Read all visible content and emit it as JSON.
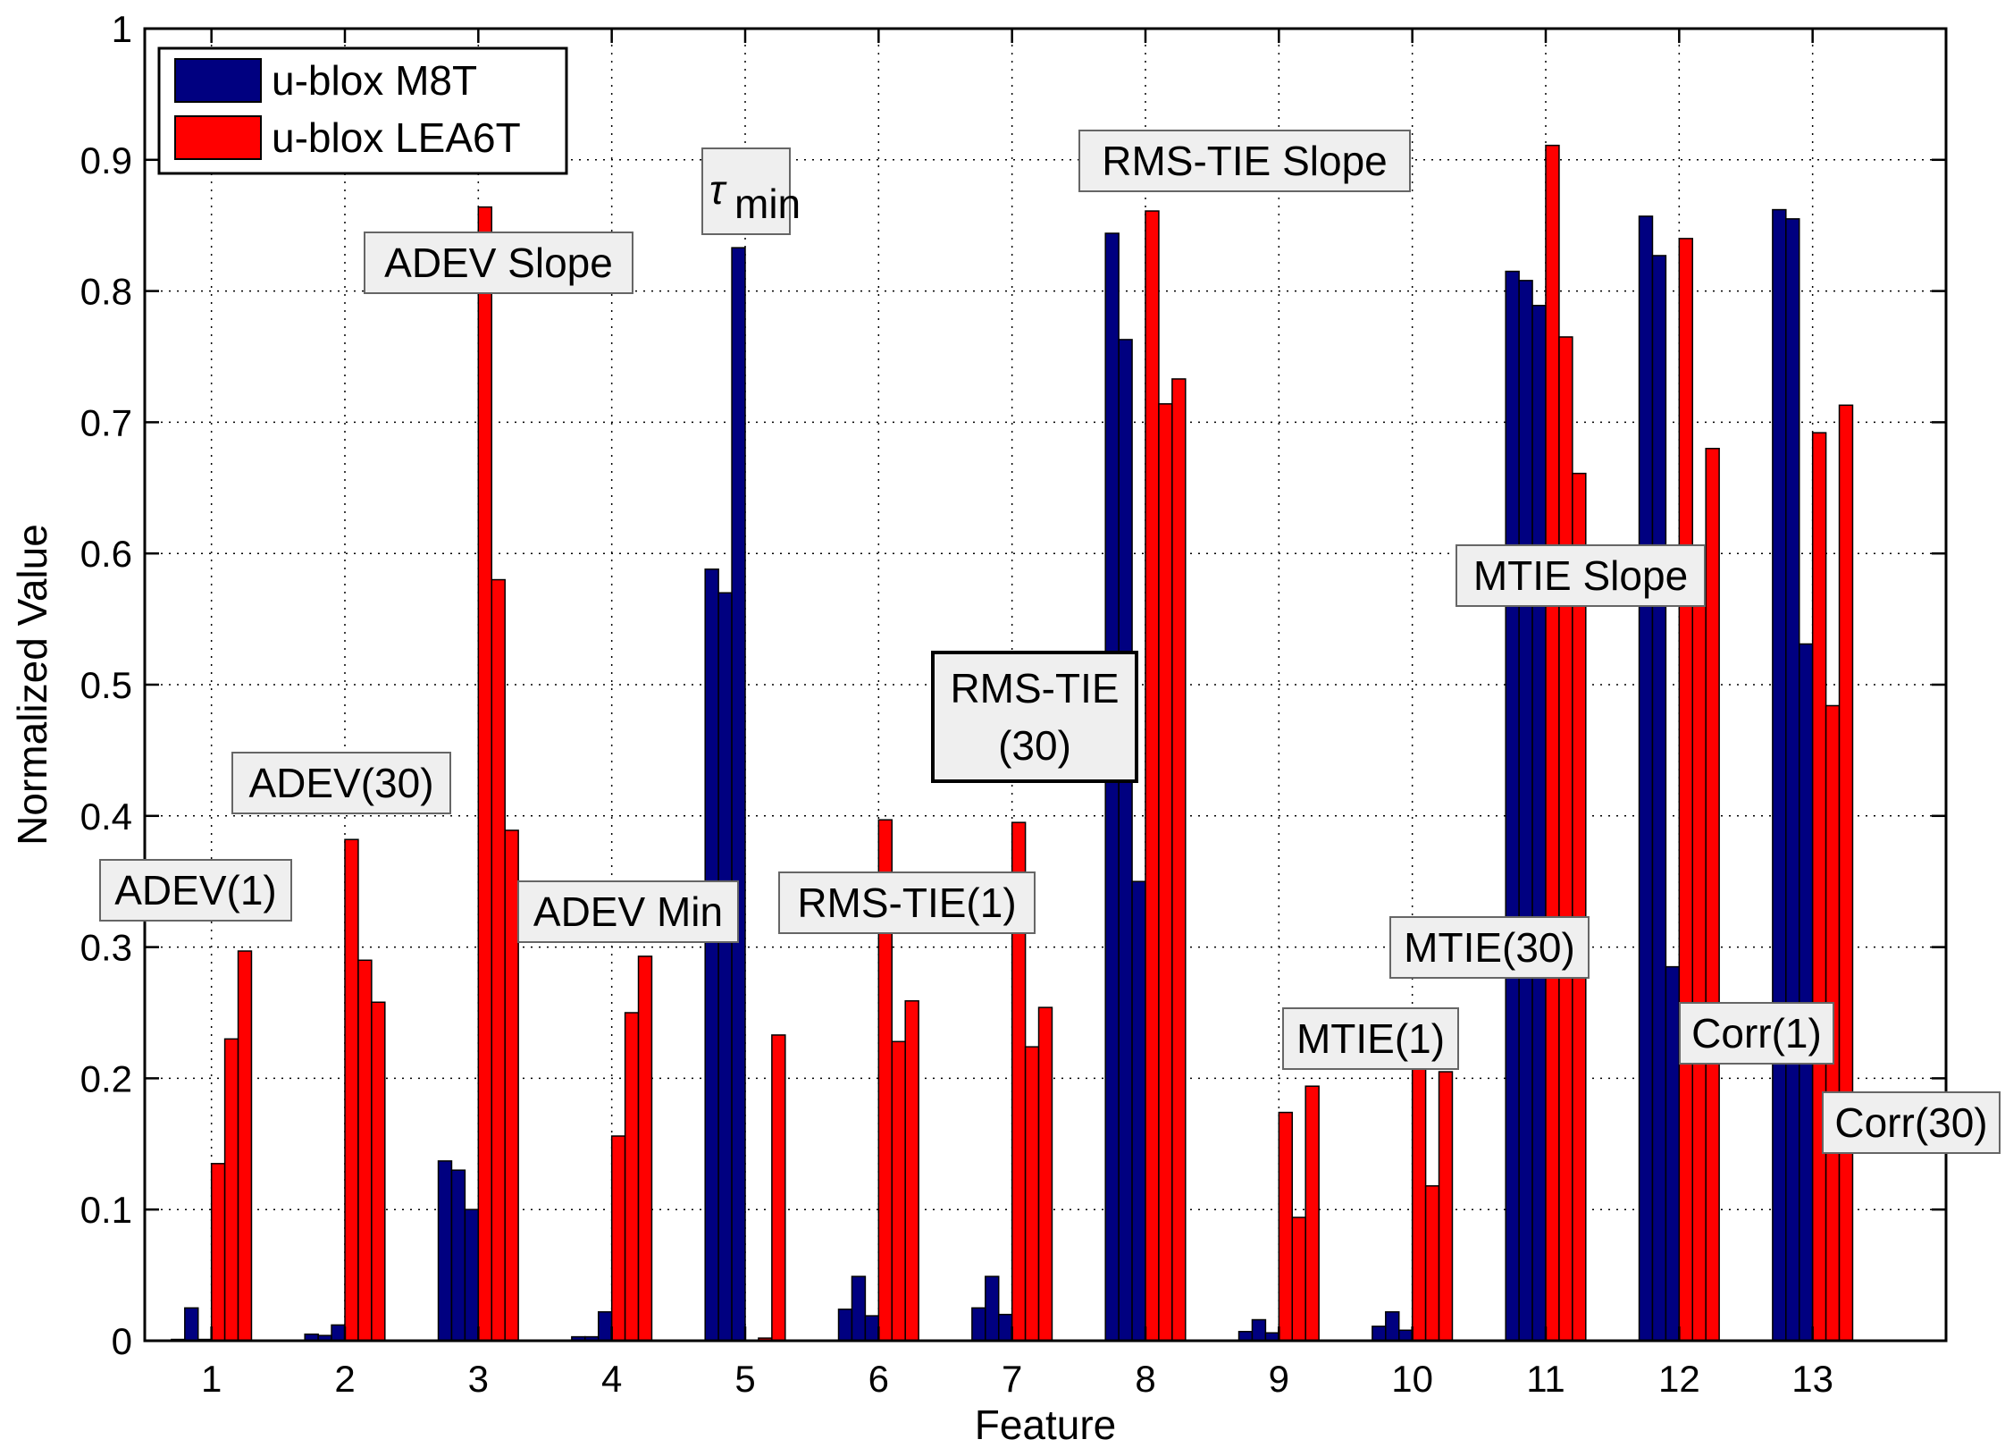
{
  "chart_data": {
    "type": "bar",
    "title": "",
    "xlabel": "Feature",
    "ylabel": "Normalized Value",
    "ylim": [
      0,
      1
    ],
    "yticks": [
      "0",
      "0.1",
      "0.2",
      "0.3",
      "0.4",
      "0.5",
      "0.6",
      "0.7",
      "0.8",
      "0.9",
      "1"
    ],
    "categories": [
      "1",
      "2",
      "3",
      "4",
      "5",
      "6",
      "7",
      "8",
      "9",
      "10",
      "11",
      "12",
      "13"
    ],
    "grid": true,
    "legend_position": "top-left",
    "series": [
      {
        "name": "u-blox M8T",
        "color": "#000080",
        "values": [
          [
            0.001,
            0.025,
            0.001
          ],
          [
            0.005,
            0.004,
            0.012
          ],
          [
            0.137,
            0.13,
            0.1
          ],
          [
            0.003,
            0.003,
            0.022
          ],
          [
            0.588,
            0.57,
            0.833
          ],
          [
            0.024,
            0.049,
            0.019
          ],
          [
            0.025,
            0.049,
            0.02
          ],
          [
            0.844,
            0.763,
            0.35
          ],
          [
            0.007,
            0.016,
            0.006
          ],
          [
            0.011,
            0.022,
            0.008
          ],
          [
            0.815,
            0.808,
            0.789
          ],
          [
            0.857,
            0.827,
            0.285
          ],
          [
            0.862,
            0.855,
            0.531
          ]
        ]
      },
      {
        "name": "u-blox LEA6T",
        "color": "#ff0000",
        "values": [
          [
            0.135,
            0.23,
            0.297
          ],
          [
            0.382,
            0.29,
            0.258
          ],
          [
            0.864,
            0.58,
            0.389
          ],
          [
            0.156,
            0.25,
            0.293
          ],
          [
            0.0,
            0.002,
            0.233
          ],
          [
            0.397,
            0.228,
            0.259
          ],
          [
            0.395,
            0.224,
            0.254
          ],
          [
            0.861,
            0.714,
            0.733
          ],
          [
            0.174,
            0.094,
            0.194
          ],
          [
            0.239,
            0.118,
            0.205
          ],
          [
            0.911,
            0.765,
            0.661
          ],
          [
            0.84,
            0.6,
            0.68
          ],
          [
            0.692,
            0.484,
            0.713
          ]
        ]
      }
    ],
    "annotations": [
      {
        "category": "1",
        "text": "ADEV(1)"
      },
      {
        "category": "2",
        "text": "ADEV(30)"
      },
      {
        "category": "3",
        "text": "ADEV Slope"
      },
      {
        "category": "4",
        "text": "ADEV Min"
      },
      {
        "category": "5",
        "text": "τ",
        "subscript": "min"
      },
      {
        "category": "6",
        "text": "RMS-TIE(1)"
      },
      {
        "category": "7",
        "text": "RMS-TIE",
        "text_line2": "(30)"
      },
      {
        "category": "8",
        "text": "RMS-TIE Slope"
      },
      {
        "category": "9",
        "text": "MTIE(1)"
      },
      {
        "category": "10",
        "text": "MTIE(30)"
      },
      {
        "category": "11",
        "text": "MTIE Slope"
      },
      {
        "category": "12",
        "text": "Corr(1)"
      },
      {
        "category": "13",
        "text": "Corr(30)"
      }
    ]
  }
}
